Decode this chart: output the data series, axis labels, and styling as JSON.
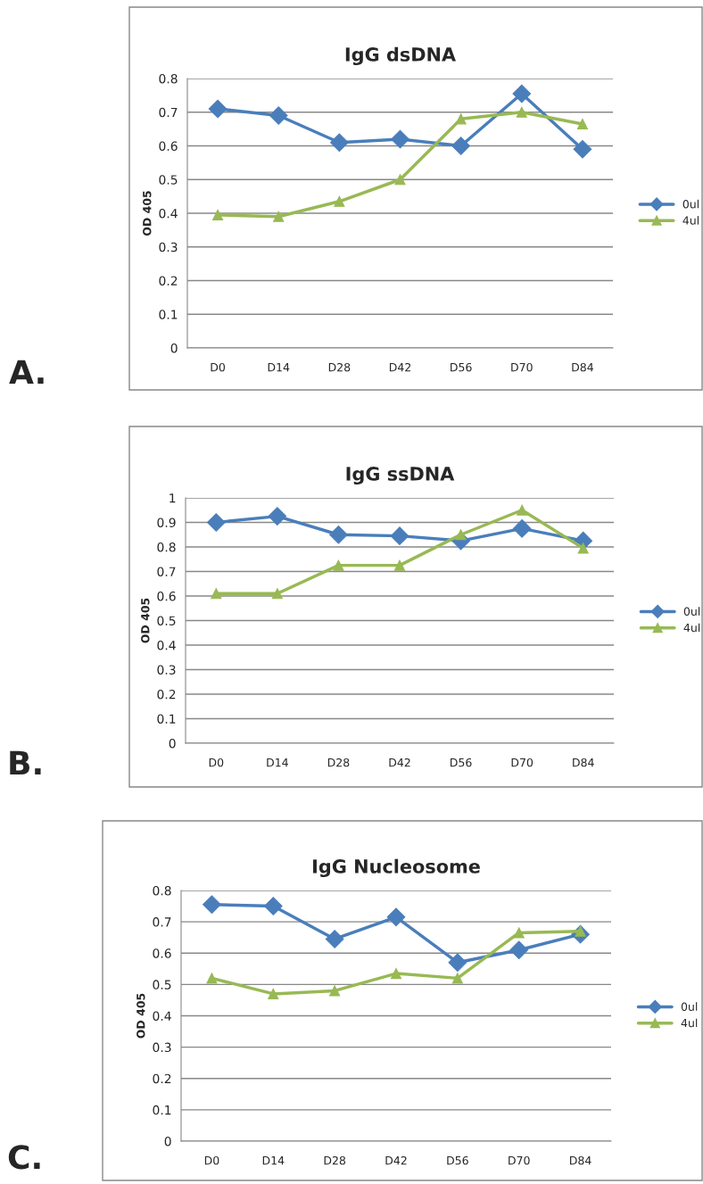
{
  "chart_data": [
    {
      "type": "line",
      "title": "IgG dsDNA",
      "ylabel": "OD 405",
      "annotations": [
        "A."
      ],
      "categories": [
        "D0",
        "D14",
        "D28",
        "D42",
        "D56",
        "D70",
        "D84"
      ],
      "series": [
        {
          "name": "0ul",
          "color": "#4a7ebb",
          "marker": "diamond",
          "values": [
            0.71,
            0.69,
            0.61,
            0.62,
            0.6,
            0.755,
            0.59
          ]
        },
        {
          "name": "4ul",
          "color": "#98b954",
          "marker": "triangle",
          "values": [
            0.395,
            0.39,
            0.435,
            0.5,
            0.68,
            0.7,
            0.665
          ]
        }
      ],
      "ylim": [
        0,
        0.8
      ],
      "yticks": [
        0,
        0.1,
        0.2,
        0.3,
        0.4,
        0.5,
        0.6,
        0.7,
        0.8
      ],
      "grid": "y",
      "legend": "right",
      "line_style": "solid"
    },
    {
      "type": "line",
      "title": "IgG ssDNA",
      "ylabel": "OD 405",
      "annotations": [
        "B."
      ],
      "categories": [
        "D0",
        "D14",
        "D28",
        "D42",
        "D56",
        "D70",
        "D84"
      ],
      "series": [
        {
          "name": "0ul",
          "color": "#4a7ebb",
          "marker": "diamond",
          "values": [
            0.9,
            0.925,
            0.85,
            0.845,
            0.825,
            0.875,
            0.825
          ]
        },
        {
          "name": "4ul",
          "color": "#98b954",
          "marker": "triangle",
          "values": [
            0.61,
            0.61,
            0.725,
            0.725,
            0.85,
            0.95,
            0.795
          ]
        }
      ],
      "ylim": [
        0,
        1
      ],
      "yticks": [
        0,
        0.1,
        0.2,
        0.3,
        0.4,
        0.5,
        0.6,
        0.7,
        0.8,
        0.9,
        1
      ],
      "grid": "y",
      "legend": "right",
      "line_style": "solid"
    },
    {
      "type": "line",
      "title": "IgG Nucleosome",
      "ylabel": "OD 405",
      "annotations": [
        "C."
      ],
      "categories": [
        "D0",
        "D14",
        "D28",
        "D42",
        "D56",
        "D70",
        "D84"
      ],
      "series": [
        {
          "name": "0ul",
          "color": "#4a7ebb",
          "marker": "diamond",
          "values": [
            0.755,
            0.75,
            0.645,
            0.715,
            0.57,
            0.61,
            0.66
          ]
        },
        {
          "name": "4ul",
          "color": "#98b954",
          "marker": "triangle",
          "values": [
            0.52,
            0.47,
            0.48,
            0.535,
            0.52,
            0.665,
            0.67
          ]
        }
      ],
      "ylim": [
        0,
        0.8
      ],
      "yticks": [
        0,
        0.1,
        0.2,
        0.3,
        0.4,
        0.5,
        0.6,
        0.7,
        0.8
      ],
      "grid": "y",
      "legend": "right",
      "line_style": "solid"
    }
  ]
}
